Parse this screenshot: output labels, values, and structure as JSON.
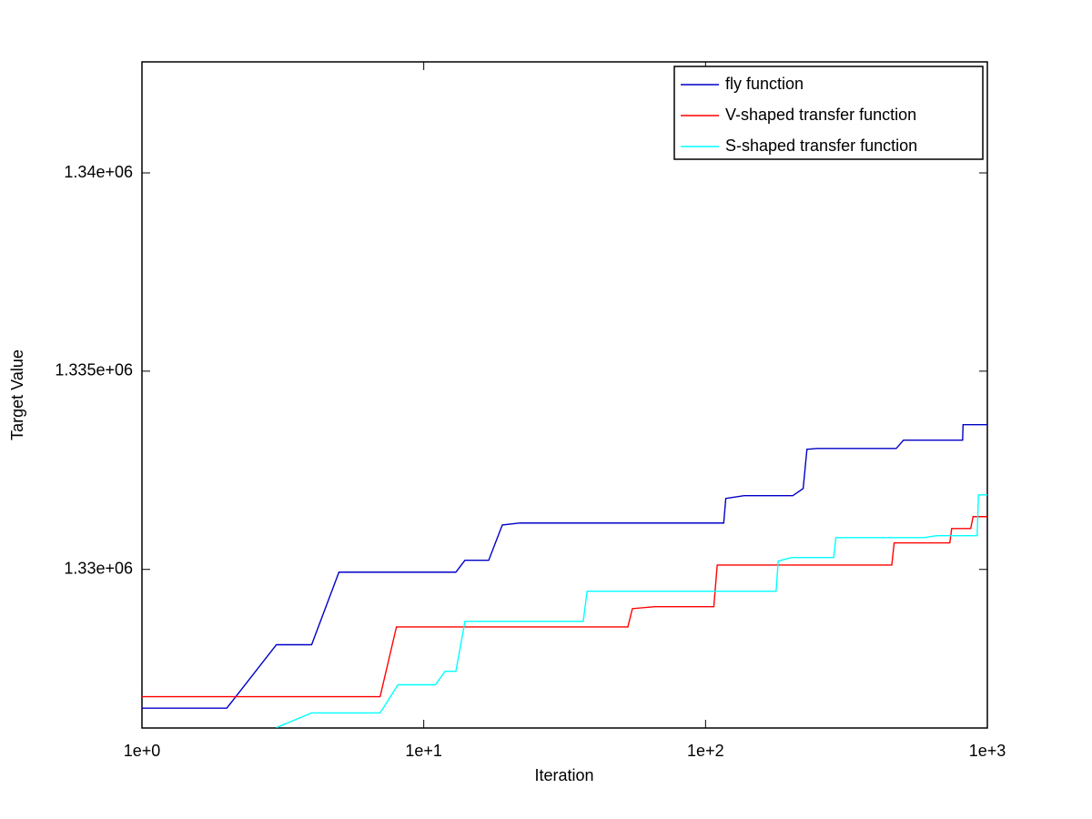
{
  "chart_data": {
    "type": "line",
    "xlabel": "Iteration",
    "ylabel": "Target Value",
    "xscale": "log",
    "xlim": [
      1,
      1000
    ],
    "xticks": [
      {
        "value": 1,
        "label": "1e+0"
      },
      {
        "value": 10,
        "label": "1e+1"
      },
      {
        "value": 100,
        "label": "1e+2"
      },
      {
        "value": 1000,
        "label": "1e+3"
      }
    ],
    "ylim": [
      1326000,
      1342800
    ],
    "yticks": [
      {
        "value": 1330000,
        "label": "1.33e+06"
      },
      {
        "value": 1335000,
        "label": "1.335e+06"
      },
      {
        "value": 1340000,
        "label": "1.34e+06"
      }
    ],
    "grid": false,
    "legend": "upper right",
    "series": [
      {
        "name": "fly function",
        "color": "#0000c8",
        "x": [
          1,
          2,
          3,
          4,
          5,
          13,
          14,
          17,
          19,
          22,
          116,
          118,
          137,
          204,
          222,
          229,
          249,
          475,
          504,
          817,
          820,
          1000
        ],
        "values": [
          1326500,
          1326500,
          1328100,
          1328100,
          1329930,
          1329930,
          1330230,
          1330230,
          1331120,
          1331170,
          1331170,
          1331790,
          1331860,
          1331860,
          1332040,
          1333030,
          1333050,
          1333050,
          1333260,
          1333260,
          1333650,
          1333650
        ]
      },
      {
        "name": "V-shaped transfer function",
        "color": "#ff0000",
        "x": [
          1,
          7,
          8,
          53,
          55,
          66,
          107,
          110,
          458,
          467,
          736,
          747,
          873,
          890,
          1000
        ],
        "values": [
          1326790,
          1326790,
          1328550,
          1328550,
          1329010,
          1329060,
          1329060,
          1330110,
          1330110,
          1330670,
          1330670,
          1331030,
          1331030,
          1331330,
          1331330
        ]
      },
      {
        "name": "S-shaped transfer function",
        "color": "#00ffff",
        "x": [
          3,
          4,
          7,
          8.1,
          11,
          11.9,
          13,
          14,
          36.8,
          38,
          178,
          181,
          202,
          285,
          290,
          594,
          660,
          920,
          930,
          1000
        ],
        "values": [
          1326010,
          1326380,
          1326380,
          1327090,
          1327090,
          1327430,
          1327430,
          1328690,
          1328690,
          1329450,
          1329450,
          1330210,
          1330300,
          1330300,
          1330800,
          1330800,
          1330850,
          1330850,
          1331880,
          1331880
        ]
      }
    ]
  }
}
